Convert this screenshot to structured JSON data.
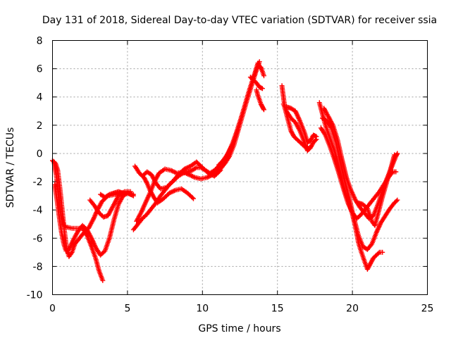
{
  "chart_data": {
    "type": "scatter",
    "title": "Day 131 of 2018, Sidereal Day-to-day VTEC variation (SDTVAR) for receiver ssia",
    "xlabel": "GPS time / hours",
    "ylabel": "SDTVAR / TECUs",
    "xlim": [
      0,
      25
    ],
    "ylim": [
      -10,
      8
    ],
    "xticks": [
      0,
      5,
      10,
      15,
      20,
      25
    ],
    "yticks": [
      -10,
      -8,
      -6,
      -4,
      -2,
      0,
      2,
      4,
      6,
      8
    ],
    "grid": true,
    "marker": "+",
    "color": "#ff0000",
    "series": [
      {
        "points": [
          [
            0.0,
            -0.5
          ],
          [
            0.2,
            -0.7
          ],
          [
            0.35,
            -1.2
          ],
          [
            0.5,
            -2.5
          ],
          [
            0.65,
            -4.0
          ],
          [
            0.8,
            -5.5
          ],
          [
            0.95,
            -6.8
          ],
          [
            1.1,
            -7.3
          ],
          [
            1.3,
            -7.0
          ],
          [
            1.5,
            -6.4
          ],
          [
            1.8,
            -6.0
          ],
          [
            2.1,
            -5.6
          ],
          [
            2.4,
            -5.3
          ],
          [
            2.7,
            -4.7
          ],
          [
            3.0,
            -4.0
          ],
          [
            3.3,
            -3.4
          ],
          [
            3.7,
            -3.0
          ],
          [
            4.2,
            -2.9
          ],
          [
            4.6,
            -2.8
          ],
          [
            5.0,
            -2.8
          ],
          [
            5.4,
            -3.0
          ]
        ]
      },
      {
        "points": [
          [
            0.1,
            -0.6
          ],
          [
            0.25,
            -1.5
          ],
          [
            0.4,
            -3.0
          ],
          [
            0.55,
            -4.3
          ],
          [
            0.7,
            -5.0
          ],
          [
            0.9,
            -5.2
          ],
          [
            1.3,
            -5.3
          ],
          [
            1.7,
            -5.3
          ],
          [
            2.0,
            -5.3
          ],
          [
            2.3,
            -5.8
          ],
          [
            2.6,
            -6.6
          ],
          [
            2.9,
            -7.5
          ],
          [
            3.1,
            -8.3
          ],
          [
            3.35,
            -9.0
          ]
        ]
      },
      {
        "points": [
          [
            0.15,
            -2.2
          ],
          [
            0.3,
            -3.3
          ],
          [
            0.45,
            -4.5
          ],
          [
            0.6,
            -5.6
          ],
          [
            0.75,
            -6.4
          ],
          [
            0.9,
            -6.9
          ],
          [
            1.1,
            -6.8
          ],
          [
            1.4,
            -6.1
          ],
          [
            1.7,
            -5.5
          ],
          [
            2.0,
            -5.1
          ],
          [
            2.3,
            -5.4
          ],
          [
            2.6,
            -6.0
          ],
          [
            2.9,
            -6.7
          ],
          [
            3.2,
            -7.2
          ],
          [
            3.5,
            -6.9
          ],
          [
            3.8,
            -6.0
          ],
          [
            4.1,
            -4.7
          ],
          [
            4.4,
            -3.6
          ],
          [
            4.7,
            -3.0
          ],
          [
            5.0,
            -2.8
          ],
          [
            5.4,
            -2.9
          ]
        ]
      },
      {
        "points": [
          [
            2.5,
            -3.3
          ],
          [
            2.8,
            -3.7
          ],
          [
            3.1,
            -4.2
          ],
          [
            3.4,
            -4.5
          ],
          [
            3.7,
            -4.4
          ],
          [
            4.0,
            -3.8
          ],
          [
            4.4,
            -3.0
          ],
          [
            4.8,
            -2.7
          ],
          [
            5.2,
            -2.7
          ]
        ]
      },
      {
        "points": [
          [
            3.2,
            -2.9
          ],
          [
            3.5,
            -3.1
          ],
          [
            3.8,
            -2.9
          ],
          [
            4.1,
            -2.8
          ],
          [
            4.4,
            -2.7
          ],
          [
            4.7,
            -2.8
          ],
          [
            5.0,
            -2.8
          ],
          [
            5.3,
            -2.9
          ]
        ]
      },
      {
        "points": [
          [
            5.5,
            -0.9
          ],
          [
            5.8,
            -1.4
          ],
          [
            6.1,
            -1.7
          ],
          [
            6.3,
            -2.1
          ],
          [
            6.5,
            -2.6
          ],
          [
            6.7,
            -3.0
          ],
          [
            7.0,
            -3.5
          ],
          [
            7.4,
            -3.2
          ],
          [
            7.8,
            -2.8
          ],
          [
            8.2,
            -2.6
          ],
          [
            8.6,
            -2.5
          ],
          [
            9.0,
            -2.8
          ],
          [
            9.4,
            -3.2
          ]
        ]
      },
      {
        "points": [
          [
            5.4,
            -5.4
          ],
          [
            5.7,
            -5.0
          ],
          [
            6.0,
            -4.6
          ],
          [
            6.3,
            -4.3
          ],
          [
            6.6,
            -3.9
          ],
          [
            6.9,
            -3.5
          ],
          [
            7.2,
            -3.0
          ],
          [
            7.5,
            -2.6
          ],
          [
            7.8,
            -2.2
          ],
          [
            8.1,
            -1.9
          ],
          [
            8.4,
            -1.6
          ],
          [
            8.7,
            -1.4
          ],
          [
            9.0,
            -1.3
          ],
          [
            9.3,
            -1.2
          ],
          [
            9.6,
            -1.0
          ],
          [
            9.9,
            -1.0
          ],
          [
            10.2,
            -1.2
          ],
          [
            10.5,
            -1.4
          ],
          [
            10.8,
            -1.2
          ],
          [
            11.1,
            -0.9
          ]
        ]
      },
      {
        "points": [
          [
            5.6,
            -4.8
          ],
          [
            5.9,
            -4.2
          ],
          [
            6.2,
            -3.5
          ],
          [
            6.5,
            -2.8
          ],
          [
            6.8,
            -2.0
          ],
          [
            7.1,
            -1.4
          ],
          [
            7.5,
            -1.1
          ],
          [
            7.9,
            -1.2
          ],
          [
            8.3,
            -1.4
          ],
          [
            8.7,
            -1.3
          ],
          [
            9.1,
            -1.5
          ],
          [
            9.5,
            -1.7
          ],
          [
            9.9,
            -1.8
          ],
          [
            10.3,
            -1.7
          ],
          [
            10.7,
            -1.5
          ],
          [
            11.1,
            -1.1
          ]
        ]
      },
      {
        "points": [
          [
            6.0,
            -1.6
          ],
          [
            6.3,
            -1.3
          ],
          [
            6.6,
            -1.5
          ],
          [
            6.9,
            -2.1
          ],
          [
            7.2,
            -2.5
          ],
          [
            7.6,
            -2.4
          ],
          [
            8.0,
            -2.0
          ],
          [
            8.4,
            -1.5
          ],
          [
            8.8,
            -1.1
          ],
          [
            9.2,
            -0.9
          ],
          [
            9.6,
            -0.6
          ],
          [
            10.0,
            -1.0
          ],
          [
            10.4,
            -1.4
          ],
          [
            10.8,
            -1.6
          ],
          [
            11.2,
            -1.2
          ]
        ]
      },
      {
        "points": [
          [
            11.0,
            -1.0
          ],
          [
            11.3,
            -0.6
          ],
          [
            11.6,
            -0.2
          ],
          [
            11.9,
            0.4
          ],
          [
            12.2,
            1.2
          ],
          [
            12.5,
            2.2
          ],
          [
            12.8,
            3.3
          ],
          [
            13.1,
            4.4
          ],
          [
            13.4,
            5.4
          ],
          [
            13.7,
            6.2
          ],
          [
            13.9,
            6.1
          ],
          [
            14.1,
            5.5
          ]
        ]
      },
      {
        "points": [
          [
            11.1,
            -0.8
          ],
          [
            11.4,
            -0.5
          ],
          [
            11.7,
            0.0
          ],
          [
            12.0,
            0.7
          ],
          [
            12.3,
            1.6
          ],
          [
            12.6,
            2.6
          ],
          [
            12.9,
            3.6
          ],
          [
            13.2,
            4.6
          ],
          [
            13.5,
            5.7
          ],
          [
            13.7,
            6.4
          ],
          [
            13.9,
            6.0
          ]
        ]
      },
      {
        "points": [
          [
            11.2,
            -1.1
          ],
          [
            11.5,
            -0.7
          ],
          [
            11.8,
            -0.2
          ],
          [
            12.1,
            0.6
          ],
          [
            12.4,
            1.7
          ],
          [
            12.7,
            2.8
          ],
          [
            13.0,
            3.9
          ],
          [
            13.3,
            4.9
          ],
          [
            13.6,
            5.9
          ],
          [
            13.8,
            6.5
          ]
        ]
      },
      {
        "points": [
          [
            13.2,
            5.4
          ],
          [
            13.4,
            5.2
          ],
          [
            13.6,
            5.0
          ],
          [
            13.8,
            4.7
          ],
          [
            14.0,
            4.6
          ]
        ]
      },
      {
        "points": [
          [
            13.6,
            4.5
          ],
          [
            13.7,
            4.1
          ],
          [
            13.8,
            3.8
          ],
          [
            13.9,
            3.5
          ],
          [
            14.0,
            3.3
          ],
          [
            14.1,
            3.1
          ]
        ]
      },
      {
        "points": [
          [
            15.3,
            4.8
          ],
          [
            15.4,
            4.0
          ],
          [
            15.5,
            3.2
          ],
          [
            15.7,
            2.4
          ],
          [
            15.9,
            1.6
          ],
          [
            16.1,
            1.2
          ],
          [
            16.3,
            1.0
          ],
          [
            16.5,
            0.8
          ],
          [
            16.7,
            0.6
          ],
          [
            16.9,
            0.4
          ],
          [
            17.0,
            0.5
          ]
        ]
      },
      {
        "points": [
          [
            15.4,
            3.5
          ],
          [
            15.6,
            3.0
          ],
          [
            15.9,
            2.5
          ],
          [
            16.2,
            2.2
          ],
          [
            16.5,
            1.6
          ],
          [
            16.8,
            0.8
          ],
          [
            17.0,
            0.2
          ],
          [
            17.2,
            0.4
          ],
          [
            17.4,
            0.8
          ],
          [
            17.6,
            1.0
          ]
        ]
      },
      {
        "points": [
          [
            15.6,
            3.3
          ],
          [
            15.9,
            3.2
          ],
          [
            16.2,
            3.0
          ],
          [
            16.5,
            2.3
          ],
          [
            16.8,
            1.5
          ],
          [
            17.0,
            0.8
          ],
          [
            17.2,
            0.9
          ],
          [
            17.4,
            1.3
          ],
          [
            17.6,
            1.2
          ]
        ]
      },
      {
        "points": [
          [
            17.8,
            3.6
          ],
          [
            18.0,
            2.8
          ],
          [
            18.2,
            2.0
          ],
          [
            18.4,
            1.4
          ],
          [
            18.6,
            0.8
          ],
          [
            18.8,
            0.2
          ],
          [
            19.0,
            -0.6
          ],
          [
            19.2,
            -1.4
          ],
          [
            19.4,
            -2.3
          ],
          [
            19.6,
            -3.0
          ],
          [
            19.8,
            -3.6
          ],
          [
            20.0,
            -4.3
          ],
          [
            20.2,
            -5.2
          ],
          [
            20.4,
            -6.3
          ],
          [
            20.6,
            -7.0
          ],
          [
            20.8,
            -7.6
          ],
          [
            21.0,
            -8.2
          ],
          [
            21.2,
            -7.8
          ],
          [
            21.4,
            -7.4
          ],
          [
            21.6,
            -7.2
          ],
          [
            21.8,
            -7.0
          ],
          [
            22.0,
            -7.0
          ]
        ]
      },
      {
        "points": [
          [
            18.0,
            2.5
          ],
          [
            18.3,
            2.3
          ],
          [
            18.6,
            1.8
          ],
          [
            18.9,
            0.8
          ],
          [
            19.2,
            -0.6
          ],
          [
            19.5,
            -2.0
          ],
          [
            19.8,
            -3.2
          ],
          [
            20.1,
            -4.6
          ],
          [
            20.4,
            -5.8
          ],
          [
            20.7,
            -6.6
          ],
          [
            21.0,
            -6.8
          ],
          [
            21.3,
            -6.4
          ],
          [
            21.6,
            -5.6
          ],
          [
            21.9,
            -4.9
          ],
          [
            22.2,
            -4.4
          ],
          [
            22.5,
            -3.9
          ],
          [
            22.8,
            -3.5
          ],
          [
            23.0,
            -3.3
          ]
        ]
      },
      {
        "points": [
          [
            17.9,
            1.8
          ],
          [
            18.2,
            1.3
          ],
          [
            18.5,
            0.5
          ],
          [
            18.8,
            -0.4
          ],
          [
            19.1,
            -1.4
          ],
          [
            19.4,
            -2.5
          ],
          [
            19.7,
            -3.5
          ],
          [
            20.0,
            -4.2
          ],
          [
            20.3,
            -4.6
          ],
          [
            20.6,
            -4.3
          ],
          [
            20.9,
            -3.9
          ],
          [
            21.2,
            -3.5
          ],
          [
            21.5,
            -3.1
          ],
          [
            21.8,
            -2.7
          ],
          [
            22.1,
            -2.2
          ],
          [
            22.4,
            -1.7
          ],
          [
            22.7,
            -1.3
          ],
          [
            22.9,
            -1.3
          ]
        ]
      },
      {
        "points": [
          [
            18.1,
            3.2
          ],
          [
            18.4,
            2.6
          ],
          [
            18.7,
            2.0
          ],
          [
            19.0,
            1.0
          ],
          [
            19.3,
            -0.4
          ],
          [
            19.6,
            -1.7
          ],
          [
            19.9,
            -2.6
          ],
          [
            20.2,
            -3.3
          ],
          [
            20.5,
            -3.8
          ],
          [
            20.8,
            -4.2
          ],
          [
            21.1,
            -4.6
          ],
          [
            21.4,
            -4.4
          ],
          [
            21.7,
            -3.6
          ],
          [
            22.0,
            -2.7
          ],
          [
            22.3,
            -1.8
          ],
          [
            22.6,
            -1.0
          ],
          [
            22.9,
            -0.2
          ],
          [
            23.0,
            0.0
          ]
        ]
      },
      {
        "points": [
          [
            20.4,
            -3.5
          ],
          [
            20.7,
            -3.6
          ],
          [
            21.0,
            -3.9
          ],
          [
            21.3,
            -4.8
          ],
          [
            21.5,
            -5.1
          ],
          [
            21.7,
            -4.3
          ],
          [
            22.0,
            -3.1
          ],
          [
            22.3,
            -2.0
          ],
          [
            22.6,
            -0.9
          ],
          [
            22.8,
            -0.1
          ]
        ]
      }
    ]
  }
}
